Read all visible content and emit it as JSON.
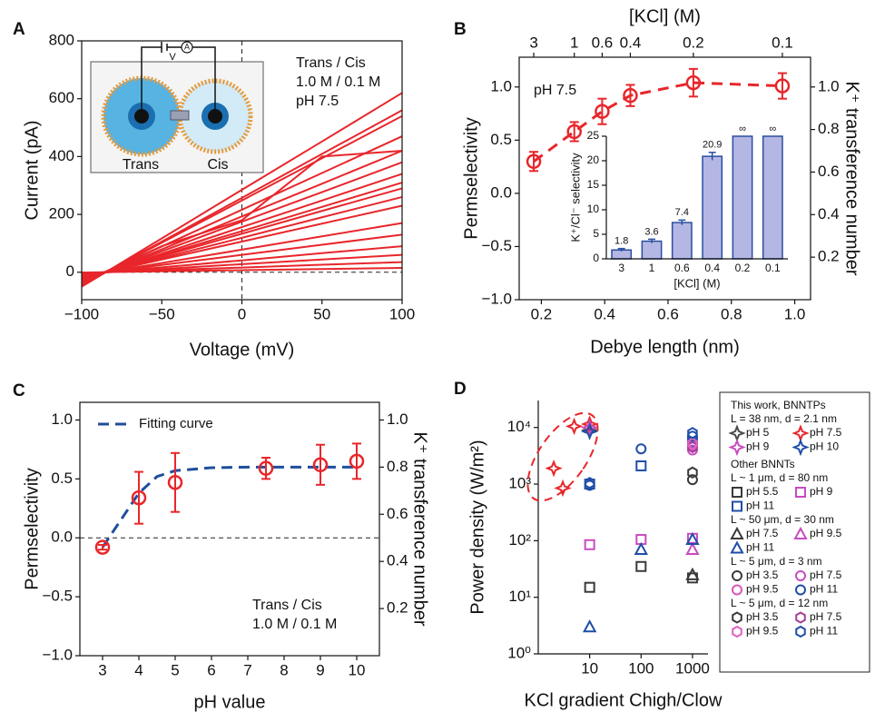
{
  "chart_data": [
    {
      "panel_label": "A",
      "type": "line",
      "xlabel": "Voltage (mV)",
      "ylabel": "Current (pA)",
      "x": [
        -100,
        -50,
        0,
        50,
        100
      ],
      "series": [
        {
          "color": "#e8262b",
          "values": [
            -50,
            117,
            285,
            452,
            620
          ]
        },
        {
          "color": "#e8262b",
          "values": [
            -45,
            106,
            257,
            409,
            560
          ]
        },
        {
          "color": "#e8262b",
          "values": [
            -44,
            102,
            248,
            394,
            540
          ]
        },
        {
          "color": "#e8262b",
          "values": [
            -38,
            89,
            216,
            343,
            470
          ]
        },
        {
          "color": "#e8262b",
          "values": [
            -35,
            90,
            180,
            400,
            420
          ]
        },
        {
          "color": "#e8262b",
          "values": [
            -34,
            79,
            193,
            306,
            420
          ]
        },
        {
          "color": "#e8262b",
          "values": [
            -31,
            72,
            175,
            277,
            380
          ]
        },
        {
          "color": "#e8262b",
          "values": [
            -28,
            64,
            156,
            248,
            340
          ]
        },
        {
          "color": "#e8262b",
          "values": [
            -25,
            59,
            142,
            226,
            310
          ]
        },
        {
          "color": "#e8262b",
          "values": [
            -24,
            55,
            133,
            212,
            290
          ]
        },
        {
          "color": "#e8262b",
          "values": [
            -21,
            49,
            119,
            190,
            260
          ]
        },
        {
          "color": "#e8262b",
          "values": [
            -19,
            44,
            106,
            168,
            230
          ]
        },
        {
          "color": "#e8262b",
          "values": [
            -14,
            32,
            78,
            124,
            170
          ]
        },
        {
          "color": "#e8262b",
          "values": [
            -11,
            25,
            60,
            95,
            130
          ]
        },
        {
          "color": "#e8262b",
          "values": [
            -7,
            17,
            41,
            66,
            90
          ]
        },
        {
          "color": "#e8262b",
          "values": [
            -5,
            11,
            28,
            44,
            60
          ]
        },
        {
          "color": "#e8262b",
          "values": [
            -3,
            7,
            16,
            26,
            35
          ]
        },
        {
          "color": "#e8262b",
          "values": [
            -1,
            3,
            7,
            11,
            15
          ]
        }
      ],
      "xlim": [
        -100,
        100
      ],
      "ylim": [
        -95,
        800
      ],
      "xticks": [
        {
          "value": -100,
          "label": "−100"
        },
        {
          "value": -50,
          "label": "−50"
        },
        0,
        50,
        100
      ],
      "yticks": [
        0,
        200,
        400,
        600,
        800
      ],
      "annotations": [
        "Trans / Cis",
        "1.0 M / 0.1 M",
        "pH 7.5"
      ],
      "inset_labels": [
        "Trans",
        "Cis",
        "V",
        "A"
      ]
    },
    {
      "panel_label": "B",
      "type": "scatter",
      "xlabel": "Debye length (nm)",
      "ylabel": "Permselectivity",
      "y2label": "K⁺ transference number",
      "top_xlabel": "[KCl] (M)",
      "x": [
        0.176,
        0.304,
        0.392,
        0.481,
        0.68,
        0.961
      ],
      "series": [
        {
          "color": "#e8262b",
          "values": [
            0.3,
            0.58,
            0.77,
            0.92,
            1.04,
            1.01
          ],
          "errors": [
            0.09,
            0.09,
            0.12,
            0.1,
            0.13,
            0.12
          ]
        }
      ],
      "xlim": [
        0.13,
        1.05
      ],
      "ylim": [
        -1,
        1.28
      ],
      "y2lim": [
        0,
        1.14
      ],
      "xticks": [
        0.2,
        0.4,
        0.6,
        0.8,
        {
          "value": 1,
          "label": "1.0"
        }
      ],
      "yticks": [
        {
          "value": -1,
          "label": "−1.0"
        },
        {
          "value": -0.5,
          "label": "−0.5"
        },
        {
          "value": 0,
          "label": "0.0"
        },
        0.5,
        {
          "value": 1,
          "label": "1.0"
        }
      ],
      "y2ticks": [
        0.2,
        0.4,
        0.6,
        0.8,
        {
          "value": 1,
          "label": "1.0"
        }
      ],
      "top_xticks": [
        {
          "value": 0.176,
          "label": "3"
        },
        {
          "value": 0.304,
          "label": "1"
        },
        {
          "value": 0.392,
          "label": "0.6"
        },
        {
          "value": 0.481,
          "label": "0.4"
        },
        {
          "value": 0.68,
          "label": "0.2"
        },
        {
          "value": 0.961,
          "label": "0.1"
        }
      ],
      "annotations": [
        "pH 7.5"
      ],
      "inset": {
        "type": "bar",
        "xlabel": "[KCl] (M)",
        "ylabel": "K⁺/Cl⁻ selectivity",
        "categories": [
          "3",
          "1",
          "0.6",
          "0.4",
          "0.2",
          "0.1"
        ],
        "values": [
          1.8,
          3.6,
          7.4,
          20.9,
          null,
          null
        ],
        "value_labels": [
          "1.8",
          "3.6",
          "7.4",
          "20.9",
          "∞",
          "∞"
        ],
        "errors": [
          0.3,
          0.4,
          0.5,
          0.8,
          null,
          null
        ],
        "color": "#b4b7e3",
        "edge_color": "#2a4ea0",
        "ylim": [
          0,
          25
        ],
        "yticks": [
          0,
          5,
          10,
          15,
          20,
          25
        ]
      }
    },
    {
      "panel_label": "C",
      "type": "scatter",
      "xlabel": "pH value",
      "ylabel": "Permselectivity",
      "y2label": "K⁺ transference number",
      "x": [
        3,
        4,
        5,
        7.5,
        9,
        10
      ],
      "series": [
        {
          "color": "#e8262b",
          "values": [
            -0.08,
            0.34,
            0.47,
            0.59,
            0.62,
            0.65
          ],
          "errors": [
            0.02,
            0.22,
            0.25,
            0.09,
            0.17,
            0.15
          ]
        }
      ],
      "fit": {
        "name": "Fitting curve",
        "color": "#1f4e9c",
        "x": [
          3,
          3.5,
          4,
          4.5,
          5,
          6,
          7,
          8,
          9,
          10
        ],
        "values": [
          -0.08,
          0.15,
          0.38,
          0.52,
          0.57,
          0.595,
          0.6,
          0.6,
          0.6,
          0.6
        ]
      },
      "xlim": [
        2.375,
        10.625
      ],
      "ylim": [
        -1,
        1.15
      ],
      "y2lim": [
        0,
        1.075
      ],
      "xticks": [
        3,
        4,
        5,
        6,
        7,
        8,
        9,
        10
      ],
      "yticks": [
        {
          "value": -1,
          "label": "−1.0"
        },
        {
          "value": -0.5,
          "label": "−0.5"
        },
        {
          "value": 0,
          "label": "0.0"
        },
        0.5,
        {
          "value": 1,
          "label": "1.0"
        }
      ],
      "y2ticks": [
        0.2,
        0.4,
        0.6,
        0.8,
        {
          "value": 1,
          "label": "1.0"
        }
      ],
      "annotations": [
        "Trans / Cis",
        "1.0 M / 0.1 M"
      ]
    },
    {
      "panel_label": "D",
      "type": "scatter",
      "xlabel": "KCl gradient Chigh/Clow",
      "ylabel": "Power density (W/m²)",
      "xscale": "log",
      "yscale": "log",
      "xlim": [
        1,
        2000
      ],
      "ylim": [
        1,
        30000
      ],
      "xticks": [
        10,
        100,
        1000
      ],
      "yticks": [
        {
          "value": 1,
          "label": "10⁰"
        },
        {
          "value": 10,
          "label": "10¹"
        },
        {
          "value": 100,
          "label": "10²"
        },
        {
          "value": 1000,
          "label": "10³"
        },
        {
          "value": 10000,
          "label": "10⁴"
        }
      ],
      "legend_groups": [
        {
          "title": "This work, BNNTPs",
          "subtitle": "L = 38 nm, d = 2.1 nm"
        },
        {
          "title": "Other BNNTs",
          "subtitle": "L ~ 1 μm, d = 80 nm"
        },
        {
          "subtitle": "L ~ 50 μm, d = 30 nm"
        },
        {
          "subtitle": "L ~ 5 μm, d = 3 nm"
        },
        {
          "subtitle": "L ~ 5 μm, d = 12 nm"
        }
      ],
      "series": [
        {
          "name": "pH 5",
          "color": "#4a4a4a",
          "marker": "star4",
          "group": 0,
          "x": [
            10
          ],
          "values": [
            9000
          ]
        },
        {
          "name": "pH 7.5",
          "color": "#e8262b",
          "marker": "star4",
          "group": 0,
          "x": [
            2,
            3,
            5,
            10
          ],
          "values": [
            1900,
            850,
            10500,
            11500
          ]
        },
        {
          "name": "pH 9",
          "color": "#c84bbf",
          "marker": "star4",
          "group": 0,
          "x": [
            10
          ],
          "values": [
            10000
          ]
        },
        {
          "name": "pH 10",
          "color": "#1f4ea8",
          "marker": "star4",
          "group": 0,
          "x": [
            10
          ],
          "values": [
            8500
          ]
        },
        {
          "name": "pH 5.5",
          "color": "#3a3a3a",
          "marker": "square",
          "group": 1,
          "x": [
            10,
            100,
            1000
          ],
          "values": [
            15,
            35,
            22
          ]
        },
        {
          "name": "pH 9",
          "color": "#c84bbf",
          "marker": "square",
          "group": 1,
          "x": [
            10,
            100,
            1000
          ],
          "values": [
            85,
            105,
            110
          ]
        },
        {
          "name": "pH 11",
          "color": "#1f4ea8",
          "marker": "square",
          "group": 1,
          "x": [
            10,
            100,
            1000
          ],
          "values": [
            1000,
            2100,
            5500
          ]
        },
        {
          "name": "pH 7.5",
          "color": "#3a3a3a",
          "marker": "triangle",
          "group": 2,
          "x": [
            1000
          ],
          "values": [
            25
          ]
        },
        {
          "name": "pH 9.5",
          "color": "#c84bbf",
          "marker": "triangle",
          "group": 2,
          "x": [
            1000
          ],
          "values": [
            70
          ]
        },
        {
          "name": "pH 11",
          "color": "#1f4ea8",
          "marker": "triangle",
          "group": 2,
          "x": [
            10,
            100,
            1000
          ],
          "values": [
            3,
            70,
            105
          ]
        },
        {
          "name": "pH 3.5",
          "color": "#3a3a3a",
          "marker": "circle",
          "group": 3,
          "x": [
            1000
          ],
          "values": [
            1200
          ]
        },
        {
          "name": "pH 7.5",
          "color": "#c84bbf",
          "marker": "circle",
          "group": 3,
          "x": [
            1000
          ],
          "values": [
            4000
          ]
        },
        {
          "name": "pH 9.5",
          "color": "#d955b8",
          "marker": "circle",
          "group": 3,
          "x": [
            1000
          ],
          "values": [
            4800
          ]
        },
        {
          "name": "pH 11",
          "color": "#1f4ea8",
          "marker": "circle",
          "group": 3,
          "x": [
            10,
            100,
            1000
          ],
          "values": [
            950,
            4200,
            7000
          ]
        },
        {
          "name": "pH 3.5",
          "color": "#3a3a3a",
          "marker": "hexagon",
          "group": 4,
          "x": [
            1000
          ],
          "values": [
            1600
          ]
        },
        {
          "name": "pH 7.5",
          "color": "#a43d96",
          "marker": "hexagon",
          "group": 4,
          "x": [
            1000
          ],
          "values": [
            4500
          ]
        },
        {
          "name": "pH 9.5",
          "color": "#e060c0",
          "marker": "hexagon",
          "group": 4,
          "x": [
            1000
          ],
          "values": [
            5200
          ]
        },
        {
          "name": "pH 11",
          "color": "#1f4ea8",
          "marker": "hexagon",
          "group": 4,
          "x": [
            10,
            1000
          ],
          "values": [
            1050,
            8000
          ]
        }
      ]
    }
  ]
}
